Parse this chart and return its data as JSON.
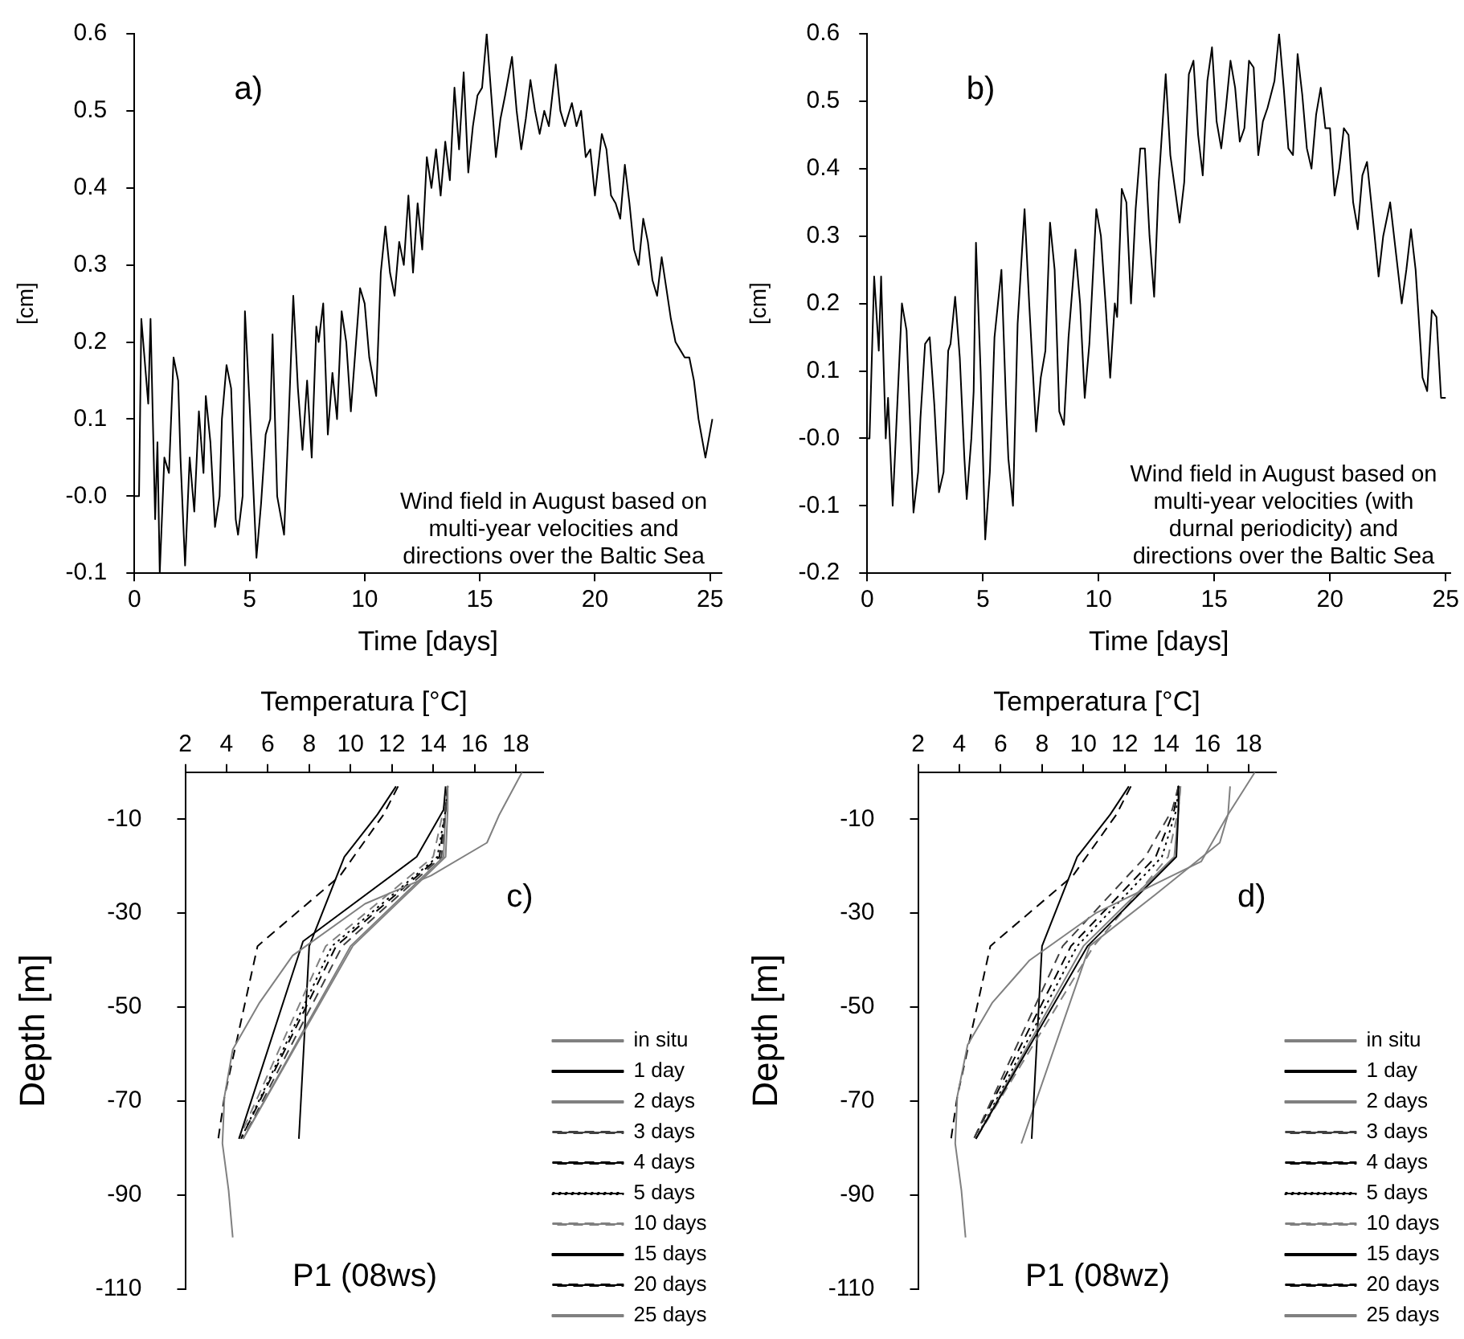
{
  "chart_data": [
    {
      "type": "line",
      "ylabel": "[cm]",
      "xlabel": "Time [days]",
      "annotations": [
        "a)",
        "Wind field in August based on multi-year velocities and directions over the Baltic Sea"
      ],
      "xlim": [
        0,
        25.5
      ],
      "xticks": [
        0,
        5,
        10,
        15,
        20,
        25
      ],
      "ylim": [
        -0.1,
        0.6
      ],
      "yticks": [
        -0.1,
        {
          "value": 0,
          "label": "-0.0"
        },
        0.1,
        0.2,
        0.3,
        0.4,
        0.5,
        0.6
      ],
      "color": "#000000",
      "x": [
        0,
        0.2,
        0.3,
        0.6,
        0.7,
        0.9,
        1.0,
        1.1,
        1.3,
        1.5,
        1.7,
        1.9,
        2.0,
        2.2,
        2.4,
        2.6,
        2.8,
        3.0,
        3.1,
        3.3,
        3.5,
        3.7,
        3.8,
        4.0,
        4.2,
        4.4,
        4.5,
        4.7,
        4.8,
        5.0,
        5.3,
        5.5,
        5.7,
        5.9,
        6.0,
        6.2,
        6.5,
        6.7,
        6.9,
        7.1,
        7.3,
        7.5,
        7.7,
        7.9,
        8.0,
        8.2,
        8.4,
        8.6,
        8.8,
        9.0,
        9.2,
        9.4,
        9.6,
        9.8,
        10.0,
        10.2,
        10.5,
        10.7,
        10.9,
        11.1,
        11.3,
        11.5,
        11.7,
        11.9,
        12.1,
        12.3,
        12.5,
        12.7,
        12.9,
        13.1,
        13.3,
        13.5,
        13.7,
        13.9,
        14.1,
        14.3,
        14.5,
        14.7,
        14.9,
        15.1,
        15.3,
        15.5,
        15.7,
        15.9,
        16.1,
        16.4,
        16.6,
        16.8,
        17.0,
        17.2,
        17.4,
        17.6,
        17.8,
        18.0,
        18.3,
        18.5,
        18.7,
        19.0,
        19.2,
        19.4,
        19.6,
        19.8,
        20.0,
        20.3,
        20.5,
        20.7,
        20.9,
        21.1,
        21.3,
        21.5,
        21.7,
        21.9,
        22.1,
        22.3,
        22.5,
        22.7,
        22.9,
        23.1,
        23.3,
        23.5,
        23.7,
        23.9,
        24.1,
        24.3,
        24.5,
        24.8,
        25.1
      ],
      "values": [
        0,
        0,
        0.23,
        0.12,
        0.23,
        -0.03,
        0.07,
        -0.1,
        0.05,
        0.03,
        0.18,
        0.15,
        0.05,
        -0.09,
        0.05,
        -0.02,
        0.11,
        0.03,
        0.13,
        0.07,
        -0.04,
        0,
        0.1,
        0.17,
        0.14,
        -0.03,
        -0.05,
        0,
        0.24,
        0.12,
        -0.08,
        -0.01,
        0.08,
        0.1,
        0.21,
        0,
        -0.05,
        0.1,
        0.26,
        0.14,
        0.06,
        0.15,
        0.05,
        0.22,
        0.2,
        0.25,
        0.08,
        0.16,
        0.1,
        0.24,
        0.2,
        0.11,
        0.19,
        0.27,
        0.25,
        0.18,
        0.13,
        0.29,
        0.35,
        0.29,
        0.26,
        0.33,
        0.3,
        0.39,
        0.29,
        0.38,
        0.32,
        0.44,
        0.4,
        0.45,
        0.39,
        0.46,
        0.41,
        0.53,
        0.45,
        0.55,
        0.42,
        0.48,
        0.52,
        0.53,
        0.6,
        0.52,
        0.44,
        0.49,
        0.52,
        0.57,
        0.5,
        0.45,
        0.49,
        0.54,
        0.5,
        0.47,
        0.5,
        0.48,
        0.56,
        0.5,
        0.48,
        0.51,
        0.48,
        0.5,
        0.44,
        0.45,
        0.39,
        0.47,
        0.45,
        0.39,
        0.38,
        0.36,
        0.43,
        0.38,
        0.32,
        0.3,
        0.36,
        0.33,
        0.28,
        0.26,
        0.31,
        0.27,
        0.23,
        0.2,
        0.19,
        0.18,
        0.18,
        0.15,
        0.1,
        0.05,
        0.1
      ]
    },
    {
      "type": "line",
      "ylabel": "[cm]",
      "xlabel": "Time [days]",
      "annotations": [
        "b)",
        "Wind field in August based on multi-year velocities (with durnal periodicity) and directions over the Baltic Sea"
      ],
      "xlim": [
        0,
        25.2
      ],
      "xticks": [
        0,
        5,
        10,
        15,
        20,
        25
      ],
      "ylim": [
        -0.2,
        0.6
      ],
      "yticks": [
        -0.2,
        -0.1,
        {
          "value": 0,
          "label": "-0.0"
        },
        0.1,
        0.2,
        0.3,
        0.4,
        0.5,
        0.6
      ],
      "color": "#000000",
      "x": [
        0,
        0.1,
        0.3,
        0.5,
        0.6,
        0.8,
        0.9,
        1.1,
        1.3,
        1.5,
        1.7,
        1.9,
        2.0,
        2.2,
        2.3,
        2.5,
        2.7,
        2.9,
        3.1,
        3.3,
        3.5,
        3.6,
        3.8,
        4.0,
        4.2,
        4.3,
        4.5,
        4.6,
        4.7,
        4.9,
        5.1,
        5.3,
        5.5,
        5.8,
        6.0,
        6.1,
        6.3,
        6.5,
        6.8,
        7.0,
        7.3,
        7.5,
        7.7,
        7.9,
        8.1,
        8.3,
        8.5,
        8.7,
        9.0,
        9.2,
        9.4,
        9.6,
        9.9,
        10.1,
        10.3,
        10.5,
        10.7,
        10.8,
        11.0,
        11.2,
        11.4,
        11.6,
        11.8,
        12.0,
        12.2,
        12.4,
        12.6,
        12.9,
        13.1,
        13.3,
        13.5,
        13.7,
        13.9,
        14.1,
        14.3,
        14.5,
        14.7,
        14.9,
        15.1,
        15.3,
        15.5,
        15.7,
        15.9,
        16.1,
        16.3,
        16.5,
        16.7,
        16.9,
        17.1,
        17.3,
        17.6,
        17.8,
        18.0,
        18.2,
        18.4,
        18.6,
        18.8,
        19.0,
        19.2,
        19.4,
        19.6,
        19.8,
        20.0,
        20.2,
        20.4,
        20.6,
        20.8,
        21.0,
        21.2,
        21.4,
        21.6,
        21.9,
        22.1,
        22.3,
        22.6,
        22.8,
        23.1,
        23.3,
        23.5,
        23.7,
        24.0,
        24.2,
        24.4,
        24.6,
        24.8,
        25.0
      ],
      "values": [
        0,
        0,
        0.24,
        0.13,
        0.24,
        0,
        0.06,
        -0.1,
        0.05,
        0.2,
        0.16,
        -0.02,
        -0.11,
        -0.05,
        0.03,
        0.14,
        0.15,
        0.05,
        -0.08,
        -0.05,
        0.13,
        0.14,
        0.21,
        0.12,
        -0.03,
        -0.09,
        0,
        0.07,
        0.29,
        0.1,
        -0.15,
        -0.05,
        0.15,
        0.25,
        0.05,
        -0.03,
        -0.1,
        0.17,
        0.34,
        0.2,
        0.01,
        0.09,
        0.13,
        0.32,
        0.25,
        0.04,
        0.02,
        0.15,
        0.28,
        0.2,
        0.06,
        0.14,
        0.34,
        0.3,
        0.2,
        0.09,
        0.2,
        0.18,
        0.37,
        0.35,
        0.2,
        0.34,
        0.43,
        0.43,
        0.3,
        0.21,
        0.38,
        0.54,
        0.42,
        0.37,
        0.32,
        0.38,
        0.54,
        0.56,
        0.45,
        0.39,
        0.53,
        0.58,
        0.47,
        0.43,
        0.49,
        0.56,
        0.52,
        0.44,
        0.46,
        0.56,
        0.55,
        0.42,
        0.47,
        0.49,
        0.53,
        0.6,
        0.52,
        0.43,
        0.42,
        0.57,
        0.51,
        0.43,
        0.4,
        0.48,
        0.52,
        0.46,
        0.46,
        0.36,
        0.4,
        0.46,
        0.45,
        0.35,
        0.31,
        0.39,
        0.41,
        0.31,
        0.24,
        0.3,
        0.35,
        0.29,
        0.2,
        0.25,
        0.31,
        0.25,
        0.09,
        0.07,
        0.19,
        0.18,
        0.06,
        0.06
      ]
    },
    {
      "type": "line",
      "xlabel": "Temperatura [°C]",
      "ylabel": "Depth [m]",
      "annotations": [
        "c)",
        "P1 (08ws)"
      ],
      "xlim": [
        2,
        19.3
      ],
      "xticks": [
        2,
        4,
        6,
        8,
        10,
        12,
        14,
        16,
        18
      ],
      "ylim": [
        -110,
        0
      ],
      "yticks": [
        -10,
        -30,
        -50,
        -70,
        -90,
        -110
      ],
      "legend": "right",
      "series": [
        {
          "name": "in situ",
          "color": "#808080",
          "line_style": "solid",
          "x": [
            18.3,
            17.2,
            16.6,
            13.9,
            10.7,
            7.2,
            5.6,
            4.3,
            3.9,
            3.8,
            4.1,
            4.3
          ],
          "values": [
            0,
            -9,
            -15,
            -22,
            -28,
            -39,
            -49,
            -59,
            -69,
            -79,
            -89,
            -99
          ]
        },
        {
          "name": "1 day",
          "color": "#000000",
          "line_style": "solid",
          "x": [
            14.6,
            14.5,
            13.2,
            7.7,
            4.6
          ],
          "values": [
            -3,
            -8,
            -18,
            -36,
            -78
          ]
        },
        {
          "name": "2 days",
          "color": "#808080",
          "line_style": "solid",
          "x": [
            14.7,
            14.7,
            14.6,
            10.1,
            4.8
          ],
          "values": [
            -3,
            -8,
            -18,
            -37,
            -78
          ]
        },
        {
          "name": "3 days",
          "color": "#404040",
          "line_style": "dashed",
          "x": [
            14.7,
            14.6,
            14.4,
            9.6,
            4.8
          ],
          "values": [
            -3,
            -8,
            -18,
            -37,
            -78
          ]
        },
        {
          "name": "4 days",
          "color": "#000000",
          "line_style": "dashed",
          "x": [
            14.7,
            14.6,
            14.3,
            9.3,
            4.7
          ],
          "values": [
            -3,
            -8,
            -18,
            -37,
            -78
          ]
        },
        {
          "name": "5 days",
          "color": "#000000",
          "line_style": "dotted",
          "x": [
            14.7,
            14.6,
            14.2,
            9.1,
            4.7
          ],
          "values": [
            -3,
            -8,
            -18,
            -37,
            -78
          ]
        },
        {
          "name": "10 days",
          "color": "#808080",
          "line_style": "dashed",
          "x": [
            14.7,
            14.5,
            14.0,
            8.8,
            4.6
          ],
          "values": [
            -3,
            -8,
            -18,
            -37,
            -78
          ]
        },
        {
          "name": "15 days",
          "color": "#000000",
          "line_style": "solid",
          "x": [
            12.2,
            11.3,
            9.7,
            8.0,
            7.5
          ],
          "values": [
            -3,
            -9,
            -18,
            -37,
            -78
          ]
        },
        {
          "name": "20 days",
          "color": "#000000",
          "line_style": "dashed",
          "x": [
            12.3,
            11.6,
            9.5,
            5.5,
            4.4,
            3.9,
            3.6
          ],
          "values": [
            -3,
            -9,
            -22,
            -37,
            -59,
            -69,
            -78
          ]
        },
        {
          "name": "25 days",
          "color": "#808080",
          "line_style": "solid",
          "x": [
            14.7,
            14.6,
            14.5,
            10.0,
            4.8
          ],
          "values": [
            -3,
            -8,
            -18,
            -37,
            -78
          ]
        }
      ]
    },
    {
      "type": "line",
      "xlabel": "Temperatura [°C]",
      "ylabel": "Depth [m]",
      "annotations": [
        "d)",
        "P1 (08wz)"
      ],
      "xlim": [
        2,
        19.3
      ],
      "xticks": [
        2,
        4,
        6,
        8,
        10,
        12,
        14,
        16,
        18
      ],
      "ylim": [
        -110,
        0
      ],
      "yticks": [
        -10,
        -30,
        -50,
        -70,
        -90,
        -110
      ],
      "legend": "right",
      "series": [
        {
          "name": "in situ",
          "color": "#808080",
          "line_style": "solid",
          "x": [
            18.3,
            17.0,
            15.7,
            10.6,
            7.4,
            5.6,
            4.4,
            3.9,
            3.8,
            4.1,
            4.3
          ],
          "values": [
            0,
            -9,
            -19,
            -30,
            -40,
            -49,
            -58,
            -69,
            -79,
            -89,
            -99
          ]
        },
        {
          "name": "1 day",
          "color": "#000000",
          "line_style": "solid",
          "x": [
            14.6,
            14.6,
            14.5,
            10.2,
            4.8
          ],
          "values": [
            -3,
            -8,
            -18,
            -37,
            -78
          ]
        },
        {
          "name": "2 days",
          "color": "#808080",
          "line_style": "solid",
          "x": [
            14.7,
            14.6,
            14.4,
            10.0,
            4.8
          ],
          "values": [
            -3,
            -8,
            -18,
            -37,
            -78
          ]
        },
        {
          "name": "3 days",
          "color": "#404040",
          "line_style": "dashed",
          "x": [
            14.6,
            14.3,
            13.0,
            9.0,
            4.7
          ],
          "values": [
            -3,
            -8,
            -18,
            -37,
            -78
          ]
        },
        {
          "name": "4 days",
          "color": "#000000",
          "line_style": "dashed",
          "x": [
            14.6,
            14.4,
            13.5,
            9.4,
            4.7
          ],
          "values": [
            -3,
            -8,
            -18,
            -37,
            -78
          ]
        },
        {
          "name": "5 days",
          "color": "#000000",
          "line_style": "dotted",
          "x": [
            14.6,
            14.5,
            13.8,
            9.7,
            4.8
          ],
          "values": [
            -3,
            -8,
            -18,
            -37,
            -78
          ]
        },
        {
          "name": "10 days",
          "color": "#808080",
          "line_style": "dashed",
          "x": [
            14.7,
            14.6,
            14.1,
            10.5,
            4.8
          ],
          "values": [
            -3,
            -8,
            -18,
            -37,
            -78
          ]
        },
        {
          "name": "15 days",
          "color": "#000000",
          "line_style": "solid",
          "x": [
            12.2,
            11.3,
            9.7,
            8.0,
            7.5
          ],
          "values": [
            -3,
            -9,
            -18,
            -37,
            -78
          ]
        },
        {
          "name": "20 days",
          "color": "#000000",
          "line_style": "dashed",
          "x": [
            12.3,
            11.6,
            9.5,
            5.5,
            4.4,
            3.9,
            3.6
          ],
          "values": [
            -3,
            -9,
            -22,
            -37,
            -59,
            -69,
            -78
          ]
        },
        {
          "name": "25 days",
          "color": "#808080",
          "line_style": "solid",
          "x": [
            17.1,
            17.0,
            16.6,
            13.5,
            10.3,
            7.0
          ],
          "values": [
            -3,
            -9,
            -15,
            -26,
            -37,
            -79
          ]
        }
      ]
    }
  ]
}
